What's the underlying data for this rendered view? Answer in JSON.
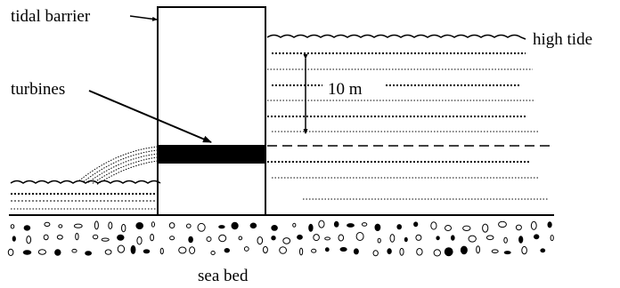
{
  "labels": {
    "tidal_barrier": "tidal barrier",
    "turbines": "turbines",
    "high_tide": "high tide",
    "height": "10 m",
    "sea_bed": "sea bed"
  },
  "colors": {
    "ink": "#000000",
    "background": "#ffffff"
  }
}
